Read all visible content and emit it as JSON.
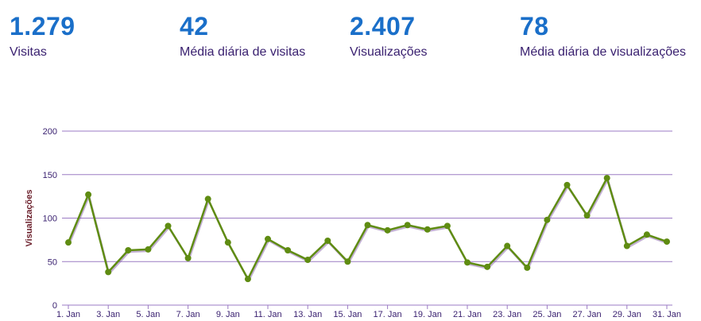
{
  "stats": [
    {
      "value": "1.279",
      "label": "Visitas"
    },
    {
      "value": "42",
      "label": "Média diária de visitas"
    },
    {
      "value": "2.407",
      "label": "Visualizações"
    },
    {
      "value": "78",
      "label": "Média diária de visualizações"
    }
  ],
  "colors": {
    "stat_value": "#1a6fc9",
    "stat_label": "#3a2170",
    "grid": "#9b7bc4",
    "line": "#5f8c12",
    "line_shadow": "#7a4fa0",
    "axis_title": "#6b1e2a"
  },
  "chart_data": {
    "type": "line",
    "title": "",
    "xlabel": "",
    "ylabel": "Visualizações",
    "ylim": [
      0,
      200
    ],
    "yticks": [
      0,
      50,
      100,
      150,
      200
    ],
    "grid": true,
    "x": [
      "1. Jan",
      "2. Jan",
      "3. Jan",
      "4. Jan",
      "5. Jan",
      "6. Jan",
      "7. Jan",
      "8. Jan",
      "9. Jan",
      "10. Jan",
      "11. Jan",
      "12. Jan",
      "13. Jan",
      "14. Jan",
      "15. Jan",
      "16. Jan",
      "17. Jan",
      "18. Jan",
      "19. Jan",
      "20. Jan",
      "21. Jan",
      "22. Jan",
      "23. Jan",
      "24. Jan",
      "25. Jan",
      "26. Jan",
      "27. Jan",
      "28. Jan",
      "29. Jan",
      "30. Jan",
      "31. Jan"
    ],
    "x_tick_labels": [
      "1. Jan",
      "3. Jan",
      "5. Jan",
      "7. Jan",
      "9. Jan",
      "11. Jan",
      "13. Jan",
      "15. Jan",
      "17. Jan",
      "19. Jan",
      "21. Jan",
      "23. Jan",
      "25. Jan",
      "27. Jan",
      "29. Jan",
      "31. Jan"
    ],
    "series": [
      {
        "values": [
          72,
          127,
          38,
          63,
          64,
          91,
          54,
          122,
          72,
          30,
          76,
          63,
          52,
          74,
          50,
          92,
          86,
          92,
          87,
          91,
          49,
          44,
          68,
          43,
          98,
          138,
          103,
          146,
          68,
          81,
          73
        ]
      }
    ]
  }
}
